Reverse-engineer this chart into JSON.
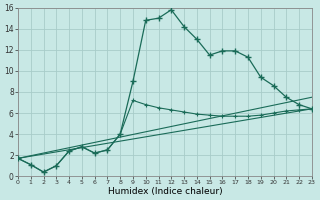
{
  "xlabel": "Humidex (Indice chaleur)",
  "background_color": "#c8e8e5",
  "grid_color": "#a8ccc9",
  "line_color": "#1a6b58",
  "xlim": [
    0,
    23
  ],
  "ylim": [
    0,
    16
  ],
  "xticks": [
    0,
    1,
    2,
    3,
    4,
    5,
    6,
    7,
    8,
    9,
    10,
    11,
    12,
    13,
    14,
    15,
    16,
    17,
    18,
    19,
    20,
    21,
    22,
    23
  ],
  "yticks": [
    0,
    2,
    4,
    6,
    8,
    10,
    12,
    14,
    16
  ],
  "curve1_x": [
    0,
    1,
    2,
    3,
    4,
    5,
    6,
    7,
    8,
    9,
    10,
    11,
    12,
    13,
    14,
    15,
    16,
    17,
    18,
    19,
    20,
    21,
    22,
    23
  ],
  "curve1_y": [
    1.7,
    1.1,
    0.4,
    1.0,
    2.4,
    2.8,
    2.2,
    2.5,
    4.0,
    9.0,
    14.8,
    15.0,
    15.8,
    14.2,
    13.0,
    11.5,
    11.9,
    11.9,
    11.3,
    9.4,
    8.6,
    7.5,
    6.8,
    6.4
  ],
  "curve2_x": [
    0,
    1,
    2,
    3,
    4,
    5,
    6,
    7,
    8,
    9,
    10,
    11,
    12,
    13,
    14,
    15,
    16,
    17,
    18,
    19,
    20,
    21,
    22,
    23
  ],
  "curve2_y": [
    1.7,
    1.1,
    0.4,
    1.0,
    2.4,
    2.8,
    2.2,
    2.5,
    4.0,
    7.2,
    6.8,
    6.5,
    6.3,
    6.1,
    5.9,
    5.8,
    5.7,
    5.7,
    5.7,
    5.8,
    6.0,
    6.2,
    6.3,
    6.4
  ],
  "line3_x": [
    0,
    23
  ],
  "line3_y": [
    1.7,
    7.5
  ],
  "line4_x": [
    0,
    23
  ],
  "line4_y": [
    1.7,
    6.4
  ]
}
